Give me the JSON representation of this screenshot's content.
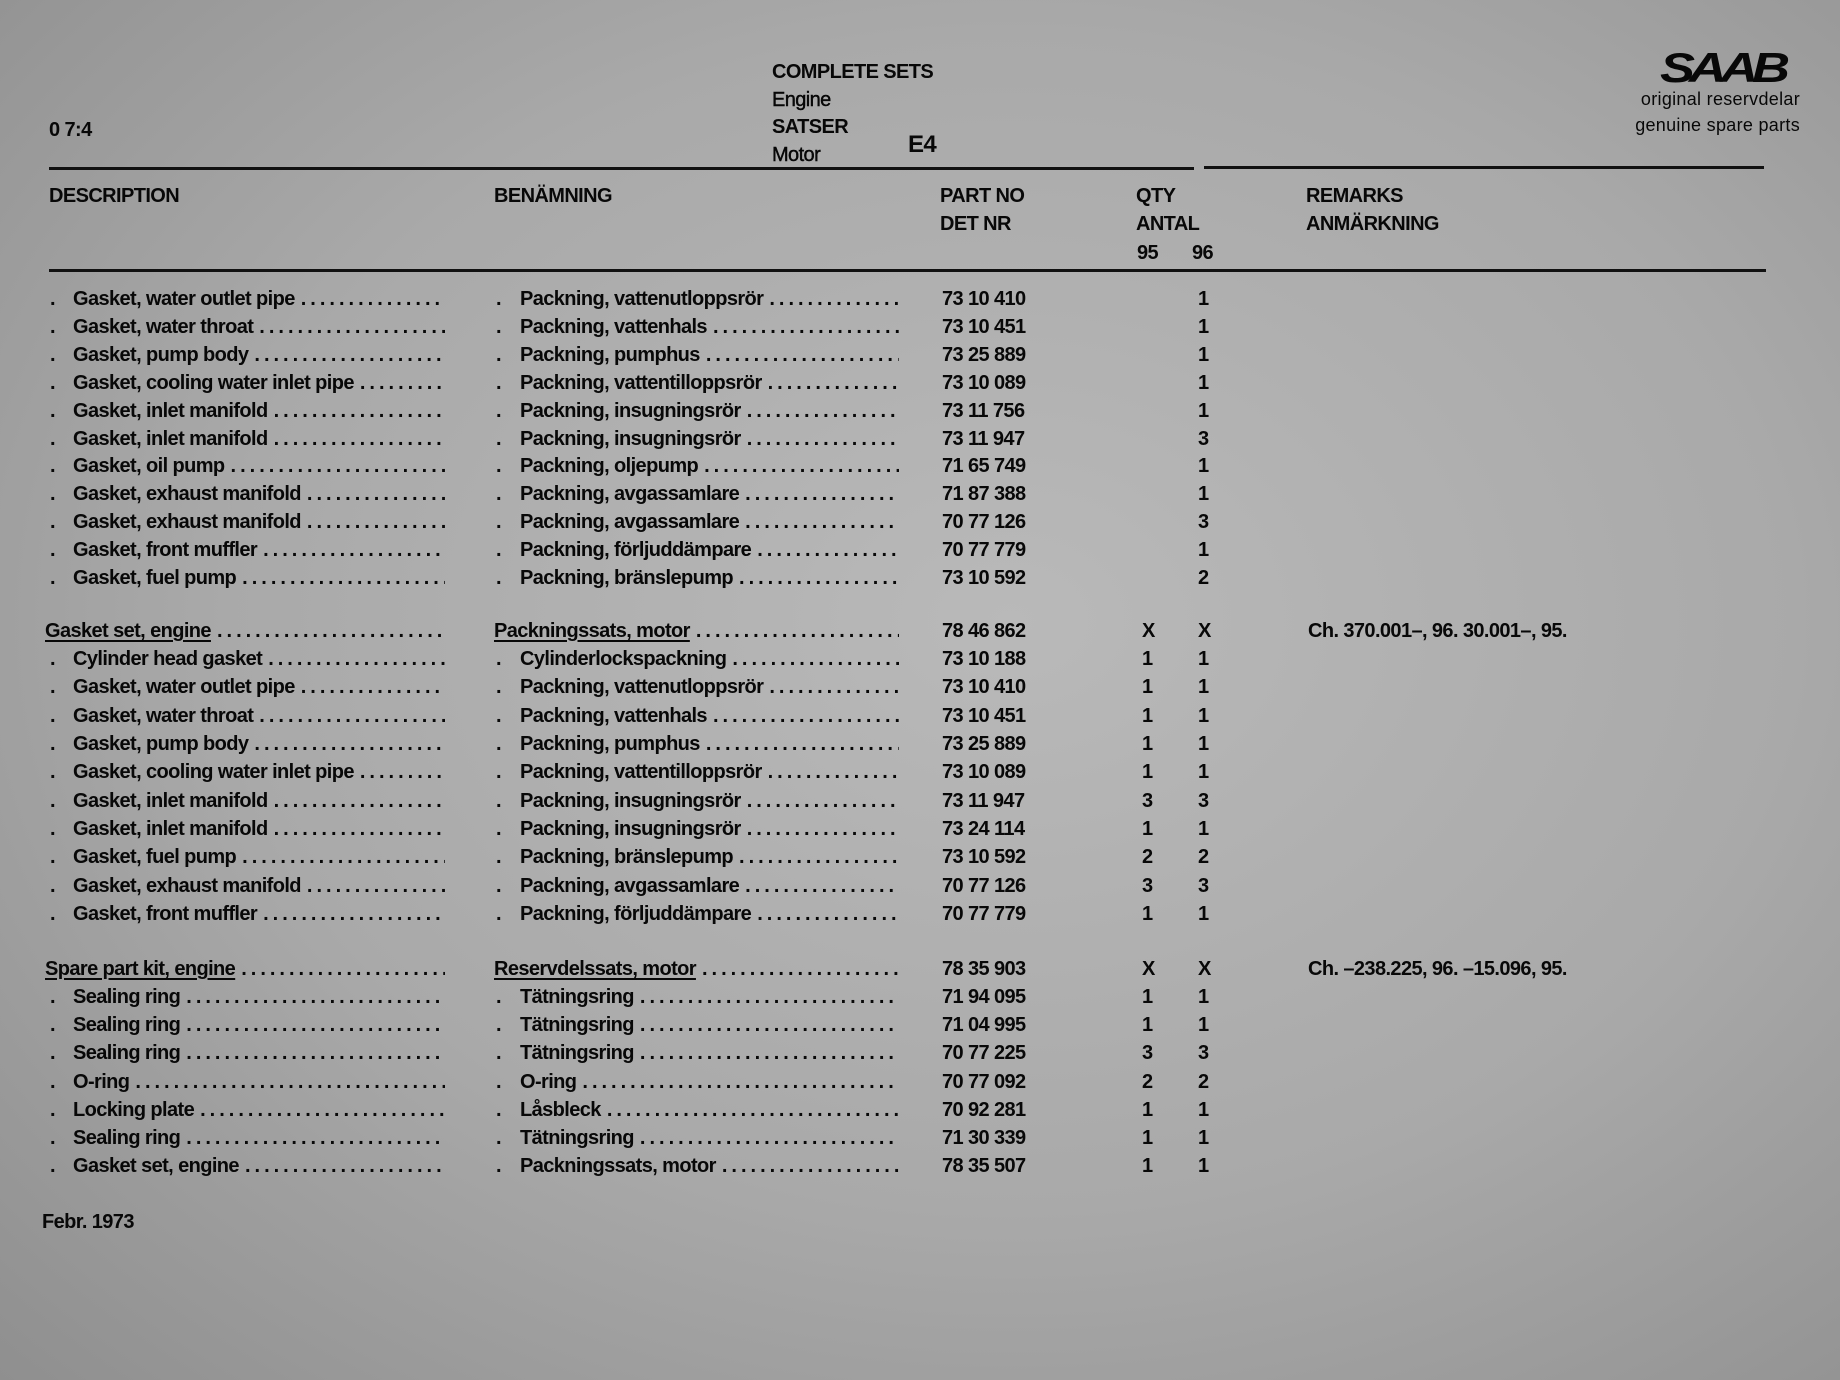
{
  "header": {
    "page_ref": "0 7:4",
    "title_lines": [
      "COMPLETE SETS",
      "Engine",
      "SATSER",
      "Motor"
    ],
    "code": "E4",
    "logo": "SAAB",
    "tagline_1": "original reservdelar",
    "tagline_2": "genuine spare parts"
  },
  "columns": {
    "description": "DESCRIPTION",
    "benamning": "BENÄMNING",
    "part_no_1": "PART NO",
    "part_no_2": "DET NR",
    "qty_1": "QTY",
    "qty_2": "ANTAL",
    "qty_95": "95",
    "qty_96": "96",
    "remarks_1": "REMARKS",
    "remarks_2": "ANMÄRKNING"
  },
  "sections": [
    {
      "header": null,
      "rows": [
        {
          "desc": "Gasket, water outlet pipe",
          "ben": "Packning, vattenutloppsrör",
          "part": "73 10 410",
          "q95": "",
          "q96": "1"
        },
        {
          "desc": "Gasket, water throat",
          "ben": "Packning, vattenhals",
          "part": "73 10 451",
          "q95": "",
          "q96": "1"
        },
        {
          "desc": "Gasket, pump body",
          "ben": "Packning, pumphus",
          "part": "73 25 889",
          "q95": "",
          "q96": "1"
        },
        {
          "desc": "Gasket, cooling water inlet pipe",
          "ben": "Packning, vattentilloppsrör",
          "part": "73 10 089",
          "q95": "",
          "q96": "1"
        },
        {
          "desc": "Gasket, inlet manifold",
          "ben": "Packning, insugningsrör",
          "part": "73 11 756",
          "q95": "",
          "q96": "1"
        },
        {
          "desc": "Gasket, inlet manifold",
          "ben": "Packning, insugningsrör",
          "part": "73 11 947",
          "q95": "",
          "q96": "3"
        },
        {
          "desc": "Gasket, oil pump",
          "ben": "Packning, oljepump",
          "part": "71 65 749",
          "q95": "",
          "q96": "1"
        },
        {
          "desc": "Gasket, exhaust manifold",
          "ben": "Packning, avgassamlare",
          "part": "71 87 388",
          "q95": "",
          "q96": "1"
        },
        {
          "desc": "Gasket, exhaust manifold",
          "ben": "Packning, avgassamlare",
          "part": "70 77 126",
          "q95": "",
          "q96": "3"
        },
        {
          "desc": "Gasket, front muffler",
          "ben": "Packning, förljuddämpare",
          "part": "70 77 779",
          "q95": "",
          "q96": "1"
        },
        {
          "desc": "Gasket, fuel pump",
          "ben": "Packning, bränslepump",
          "part": "73 10 592",
          "q95": "",
          "q96": "2"
        }
      ]
    },
    {
      "header": {
        "desc": "Gasket set, engine",
        "ben": "Packningssats, motor",
        "part": "78 46 862",
        "q95": "X",
        "q96": "X",
        "remarks": "Ch. 370.001–, 96. 30.001–, 95."
      },
      "rows": [
        {
          "desc": "Cylinder head gasket",
          "ben": "Cylinderlockspackning",
          "part": "73 10 188",
          "q95": "1",
          "q96": "1"
        },
        {
          "desc": "Gasket, water outlet pipe",
          "ben": "Packning, vattenutloppsrör",
          "part": "73 10 410",
          "q95": "1",
          "q96": "1"
        },
        {
          "desc": "Gasket, water throat",
          "ben": "Packning, vattenhals",
          "part": "73 10 451",
          "q95": "1",
          "q96": "1"
        },
        {
          "desc": "Gasket, pump body",
          "ben": "Packning, pumphus",
          "part": "73 25 889",
          "q95": "1",
          "q96": "1"
        },
        {
          "desc": "Gasket, cooling water inlet pipe",
          "ben": "Packning, vattentilloppsrör",
          "part": "73 10 089",
          "q95": "1",
          "q96": "1"
        },
        {
          "desc": "Gasket, inlet manifold",
          "ben": "Packning, insugningsrör",
          "part": "73 11 947",
          "q95": "3",
          "q96": "3"
        },
        {
          "desc": "Gasket, inlet manifold",
          "ben": "Packning, insugningsrör",
          "part": "73 24 114",
          "q95": "1",
          "q96": "1"
        },
        {
          "desc": "Gasket, fuel pump",
          "ben": "Packning, bränslepump",
          "part": "73 10 592",
          "q95": "2",
          "q96": "2"
        },
        {
          "desc": "Gasket, exhaust manifold",
          "ben": "Packning, avgassamlare",
          "part": "70 77 126",
          "q95": "3",
          "q96": "3"
        },
        {
          "desc": "Gasket, front muffler",
          "ben": "Packning, förljuddämpare",
          "part": "70 77 779",
          "q95": "1",
          "q96": "1"
        }
      ]
    },
    {
      "header": {
        "desc": "Spare part kit, engine",
        "ben": "Reservdelssats, motor",
        "part": "78 35 903",
        "q95": "X",
        "q96": "X",
        "remarks": "Ch. –238.225, 96. –15.096, 95."
      },
      "rows": [
        {
          "desc": "Sealing ring",
          "ben": "Tätningsring",
          "part": "71 94 095",
          "q95": "1",
          "q96": "1"
        },
        {
          "desc": "Sealing ring",
          "ben": "Tätningsring",
          "part": "71 04 995",
          "q95": "1",
          "q96": "1"
        },
        {
          "desc": "Sealing ring",
          "ben": "Tätningsring",
          "part": "70 77 225",
          "q95": "3",
          "q96": "3"
        },
        {
          "desc": "O-ring",
          "ben": "O-ring",
          "part": "70 77 092",
          "q95": "2",
          "q96": "2"
        },
        {
          "desc": "Locking plate",
          "ben": "Låsbleck",
          "part": "70 92 281",
          "q95": "1",
          "q96": "1"
        },
        {
          "desc": "Sealing ring",
          "ben": "Tätningsring",
          "part": "71 30 339",
          "q95": "1",
          "q96": "1"
        },
        {
          "desc": "Gasket set, engine",
          "ben": "Packningssats, motor",
          "part": "78 35 507",
          "q95": "1",
          "q96": "1"
        }
      ]
    }
  ],
  "footer": {
    "date": "Febr. 1973"
  }
}
